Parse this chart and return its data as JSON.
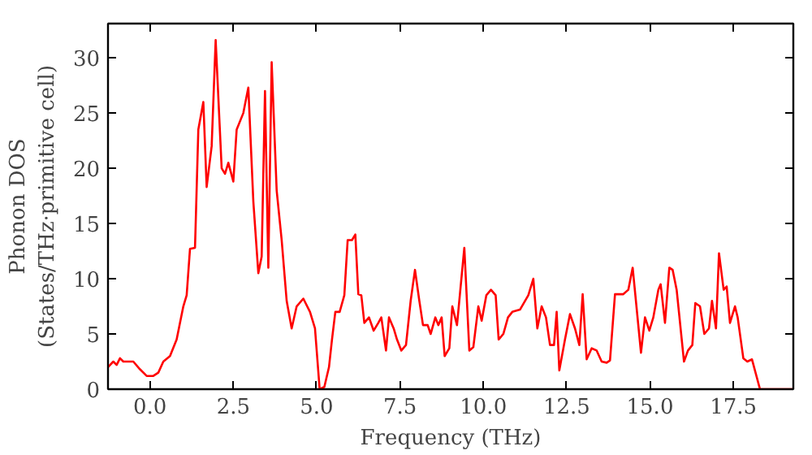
{
  "chart_data": {
    "type": "line",
    "xlabel": "Frequency (THz)",
    "ylabel": "Phonon DOS\n(States/THz·primitive cell)",
    "x": [
      -1.26,
      -1.1,
      -1.0,
      -0.9,
      -0.8,
      -0.5,
      -0.3,
      -0.1,
      0.1,
      0.25,
      0.4,
      0.6,
      0.8,
      1.0,
      1.1,
      1.2,
      1.35,
      1.45,
      1.6,
      1.7,
      1.85,
      1.97,
      2.15,
      2.25,
      2.35,
      2.5,
      2.6,
      2.8,
      2.95,
      3.1,
      3.25,
      3.35,
      3.45,
      3.55,
      3.65,
      3.8,
      3.95,
      4.1,
      4.25,
      4.4,
      4.6,
      4.8,
      4.95,
      5.09,
      5.23,
      5.37,
      5.46,
      5.56,
      5.69,
      5.83,
      5.93,
      6.06,
      6.16,
      6.25,
      6.34,
      6.43,
      6.57,
      6.71,
      6.85,
      6.94,
      7.08,
      7.17,
      7.31,
      7.41,
      7.54,
      7.68,
      7.82,
      7.95,
      8.08,
      8.19,
      8.33,
      8.42,
      8.56,
      8.65,
      8.75,
      8.84,
      8.98,
      9.07,
      9.21,
      9.43,
      9.58,
      9.7,
      9.85,
      9.95,
      10.09,
      10.23,
      10.37,
      10.46,
      10.6,
      10.74,
      10.87,
      11.1,
      11.35,
      11.5,
      11.62,
      11.75,
      11.88,
      12.0,
      12.12,
      12.2,
      12.28,
      12.45,
      12.6,
      12.75,
      12.88,
      12.98,
      13.1,
      13.25,
      13.4,
      13.55,
      13.7,
      13.8,
      13.95,
      14.2,
      14.35,
      14.48,
      14.73,
      14.85,
      14.98,
      15.1,
      15.25,
      15.32,
      15.45,
      15.58,
      15.68,
      15.8,
      16.02,
      16.14,
      16.27,
      16.36,
      16.5,
      16.63,
      16.77,
      16.86,
      16.98,
      17.07,
      17.21,
      17.3,
      17.4,
      17.55,
      17.63,
      17.8,
      17.92,
      18.06,
      18.3,
      19.3
    ],
    "values": [
      2,
      2.5,
      2.2,
      2.8,
      2.5,
      2.5,
      1.8,
      1.2,
      1.2,
      1.5,
      2.5,
      3,
      4.5,
      7.5,
      8.5,
      12.7,
      12.8,
      23.5,
      26,
      18.3,
      22,
      31.6,
      20,
      19.5,
      20.5,
      18.8,
      23.5,
      25,
      27.3,
      17,
      10.5,
      12,
      27,
      11,
      29.6,
      18,
      13.5,
      8,
      5.5,
      7.5,
      8.2,
      7,
      5.5,
      0,
      0.2,
      2,
      4.5,
      7,
      7,
      8.5,
      13.5,
      13.5,
      14,
      8.6,
      8.5,
      6,
      6.5,
      5.3,
      6,
      6.5,
      3.5,
      6.5,
      5.5,
      4.5,
      3.5,
      4,
      8,
      10.8,
      8,
      5.8,
      5.8,
      5,
      6.5,
      5.8,
      6.5,
      3,
      3.7,
      7.5,
      5.8,
      12.8,
      3.5,
      3.8,
      7.5,
      6.2,
      8.5,
      9,
      8.5,
      4.5,
      5,
      6.5,
      7,
      7.2,
      8.5,
      10,
      5.5,
      7.5,
      6.5,
      4,
      4,
      7,
      1.7,
      4.5,
      6.8,
      5.5,
      4,
      8.6,
      2.7,
      3.7,
      3.5,
      2.5,
      2.4,
      2.6,
      8.6,
      8.6,
      9,
      11,
      3.3,
      6.5,
      5.3,
      6.5,
      9,
      9.5,
      6,
      11,
      10.8,
      9,
      2.5,
      3.5,
      4,
      7.8,
      7.5,
      5,
      5.5,
      8,
      5.5,
      12.3,
      9,
      9.3,
      6,
      7.5,
      6.5,
      2.8,
      2.5,
      2.7,
      0,
      0
    ],
    "color": "#ff0000",
    "marker": "none",
    "line_style": "solid",
    "grid": false,
    "xlim": [
      -1.26,
      19.3
    ],
    "ylim": [
      0,
      33.1
    ],
    "xticks": [
      {
        "value": 0,
        "label": "0.0"
      },
      {
        "value": 2.5,
        "label": "2.5"
      },
      {
        "value": 5,
        "label": "5.0"
      },
      {
        "value": 7.5,
        "label": "7.5"
      },
      {
        "value": 10,
        "label": "10.0"
      },
      {
        "value": 12.5,
        "label": "12.5"
      },
      {
        "value": 15,
        "label": "15.0"
      },
      {
        "value": 17.5,
        "label": "17.5"
      }
    ],
    "yticks": [
      0,
      5,
      10,
      15,
      20,
      25,
      30
    ]
  }
}
